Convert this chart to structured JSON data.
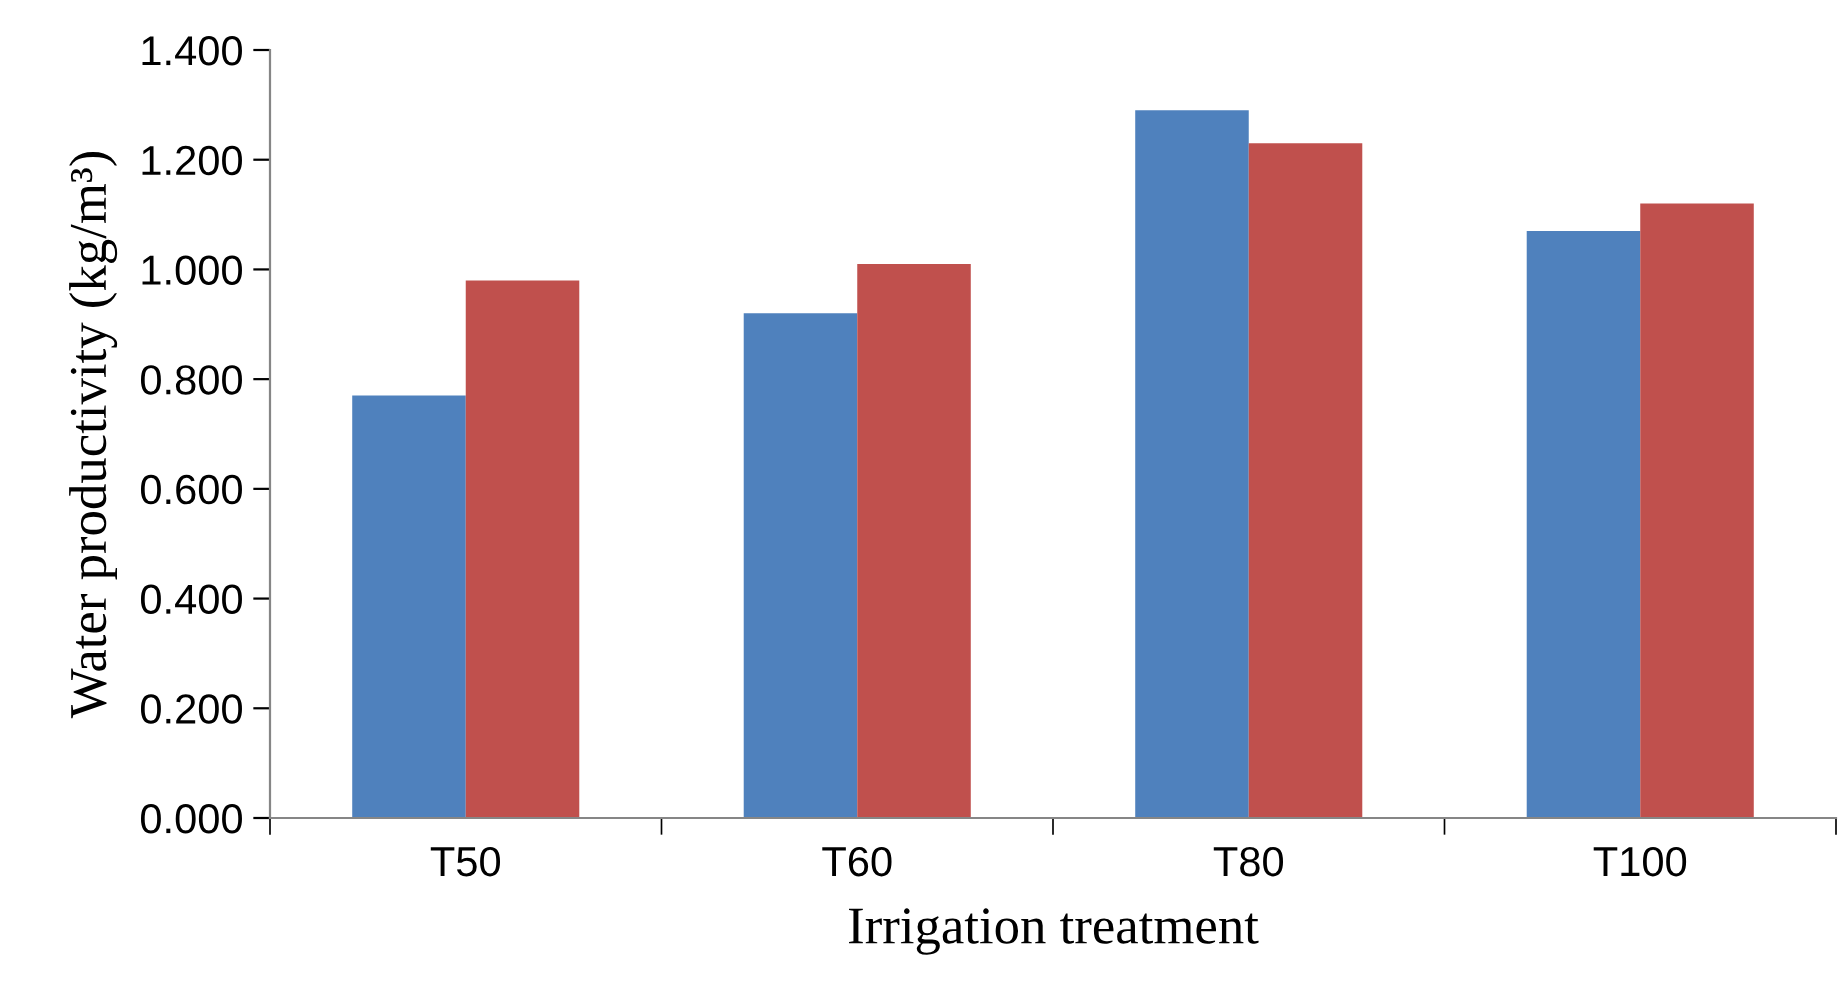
{
  "chart_data": {
    "type": "bar",
    "xlabel": "Irrigation treatment",
    "ylabel": "Water productivity (kg/m³)",
    "categories": [
      "T50",
      "T60",
      "T80",
      "T100"
    ],
    "series": [
      {
        "color": "#4f81bd",
        "values": [
          0.77,
          0.92,
          1.29,
          1.07
        ]
      },
      {
        "color": "#c0504d",
        "values": [
          0.98,
          1.01,
          1.23,
          1.12
        ]
      }
    ],
    "ylim": [
      0,
      1.4
    ],
    "yticks": [
      {
        "value": 0,
        "label": "0.000"
      },
      {
        "value": 0.2,
        "label": "0.200"
      },
      {
        "value": 0.4,
        "label": "0.400"
      },
      {
        "value": 0.6,
        "label": "0.600"
      },
      {
        "value": 0.8,
        "label": "0.800"
      },
      {
        "value": 1.0,
        "label": "1.000"
      },
      {
        "value": 1.2,
        "label": "1.200"
      },
      {
        "value": 1.4,
        "label": "1.400"
      }
    ],
    "grid": false
  }
}
